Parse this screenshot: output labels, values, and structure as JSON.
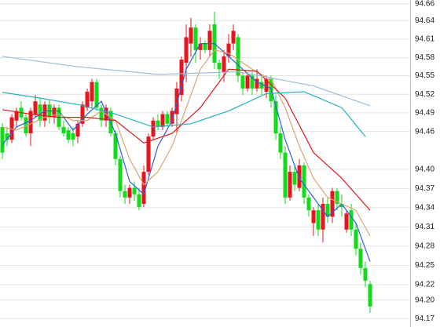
{
  "chart_data": {
    "type": "candlestick",
    "open": [
      94.47,
      94.46,
      94.45,
      94.48,
      94.5,
      94.485,
      94.46,
      94.49,
      94.505,
      94.48,
      94.505,
      94.485,
      94.5,
      94.47,
      94.465,
      94.46,
      94.455,
      94.475,
      94.5,
      94.51,
      94.54,
      94.5,
      94.48,
      94.495,
      94.46,
      94.42,
      94.37,
      94.36,
      94.375,
      94.365,
      94.35,
      94.4,
      94.455,
      94.48,
      94.47,
      94.49,
      94.475,
      94.49,
      94.52,
      94.57,
      94.6,
      94.625,
      94.59,
      94.6,
      94.59,
      94.63,
      94.57,
      94.555,
      94.58,
      94.6,
      94.61,
      94.55,
      94.53,
      94.55,
      94.53,
      94.54,
      94.525,
      94.545,
      94.51,
      94.46,
      94.43,
      94.36,
      94.4,
      94.375,
      94.41,
      94.36,
      94.32,
      94.34,
      94.31,
      94.35,
      94.33,
      94.37,
      94.35,
      94.31,
      94.34,
      94.31,
      94.28,
      94.25,
      94.225
    ],
    "high": [
      94.476,
      94.47,
      94.49,
      94.5,
      94.51,
      94.49,
      94.5,
      94.52,
      94.515,
      94.51,
      94.512,
      94.505,
      94.505,
      94.48,
      94.47,
      94.47,
      94.48,
      94.51,
      94.53,
      94.545,
      94.545,
      94.505,
      94.505,
      94.5,
      94.465,
      94.425,
      94.38,
      94.38,
      94.385,
      94.375,
      94.41,
      94.46,
      94.485,
      94.49,
      94.495,
      94.495,
      94.5,
      94.54,
      94.58,
      94.63,
      94.64,
      94.63,
      94.61,
      94.605,
      94.63,
      94.65,
      94.575,
      94.59,
      94.615,
      94.63,
      94.615,
      94.555,
      94.555,
      94.555,
      94.56,
      94.55,
      94.55,
      94.55,
      94.52,
      94.47,
      94.44,
      94.41,
      94.41,
      94.42,
      94.415,
      94.365,
      94.345,
      94.35,
      94.36,
      94.36,
      94.375,
      94.375,
      94.365,
      94.34,
      94.35,
      94.32,
      94.29,
      94.26,
      94.23
    ],
    "low": [
      94.42,
      94.44,
      94.445,
      94.47,
      94.48,
      94.455,
      94.44,
      94.485,
      94.47,
      94.47,
      94.475,
      94.475,
      94.465,
      94.455,
      94.445,
      94.44,
      94.445,
      94.47,
      94.495,
      94.5,
      94.495,
      94.47,
      94.47,
      94.455,
      94.41,
      94.36,
      94.35,
      94.35,
      94.355,
      94.34,
      94.345,
      94.395,
      94.45,
      94.465,
      94.465,
      94.47,
      94.47,
      94.46,
      94.51,
      94.54,
      94.58,
      94.57,
      94.575,
      94.585,
      94.58,
      94.56,
      94.545,
      94.54,
      94.57,
      94.59,
      94.54,
      94.52,
      94.525,
      94.52,
      94.525,
      94.52,
      94.515,
      94.5,
      94.45,
      94.42,
      94.35,
      94.355,
      94.37,
      94.37,
      94.35,
      94.33,
      94.3,
      94.3,
      94.29,
      94.32,
      94.32,
      94.34,
      94.33,
      94.305,
      94.3,
      94.27,
      94.24,
      94.22,
      94.18
    ],
    "close": [
      94.43,
      94.45,
      94.485,
      94.495,
      94.485,
      94.46,
      94.495,
      94.51,
      94.48,
      94.505,
      94.485,
      94.5,
      94.47,
      94.46,
      94.45,
      94.45,
      94.475,
      94.505,
      94.525,
      94.54,
      94.5,
      94.48,
      94.5,
      94.46,
      94.42,
      94.37,
      94.36,
      94.375,
      94.365,
      94.345,
      94.4,
      94.455,
      94.48,
      94.47,
      94.49,
      94.475,
      94.495,
      94.53,
      94.575,
      94.61,
      94.625,
      94.59,
      94.6,
      94.59,
      94.62,
      94.57,
      94.56,
      94.58,
      94.6,
      94.62,
      94.55,
      94.53,
      94.55,
      94.53,
      94.545,
      94.53,
      94.545,
      94.51,
      94.46,
      94.43,
      94.36,
      94.4,
      94.38,
      94.41,
      94.36,
      94.34,
      94.34,
      94.31,
      94.35,
      94.33,
      94.37,
      94.35,
      94.345,
      94.335,
      94.31,
      94.28,
      94.25,
      94.23,
      94.19
    ],
    "up_color": "#e8141e",
    "down_color": "#10dc1a",
    "series": [
      {
        "color": "#2f5fe0",
        "x": [
          0,
          3,
          6,
          9,
          12,
          15,
          18,
          21,
          24,
          27,
          30,
          33,
          36,
          39,
          42,
          45,
          48,
          51,
          54,
          57,
          60,
          63,
          66,
          69,
          72,
          75,
          78
        ],
        "values": [
          94.442,
          94.47,
          94.48,
          94.495,
          94.495,
          94.465,
          94.49,
          94.51,
          94.46,
          94.385,
          94.365,
          94.44,
          94.48,
          94.56,
          94.6,
          94.6,
          94.58,
          94.56,
          94.54,
          94.53,
          94.45,
          94.39,
          94.36,
          94.33,
          94.35,
          94.32,
          94.26
        ]
      },
      {
        "color": "#d8a575",
        "x": [
          0,
          3,
          6,
          9,
          12,
          15,
          18,
          21,
          24,
          27,
          30,
          33,
          36,
          39,
          42,
          45,
          48,
          51,
          54,
          57,
          60,
          63,
          66,
          69,
          72,
          75,
          78
        ],
        "values": [
          94.47,
          94.465,
          94.475,
          94.485,
          94.49,
          94.48,
          94.48,
          94.495,
          94.48,
          94.42,
          94.38,
          94.4,
          94.44,
          94.5,
          94.56,
          94.59,
          94.585,
          94.57,
          94.555,
          94.545,
          94.5,
          94.44,
          94.39,
          94.36,
          94.35,
          94.34,
          94.3
        ]
      },
      {
        "color": "#e01818",
        "x": [
          0,
          6,
          12,
          18,
          24,
          30,
          36,
          42,
          48,
          54,
          60,
          66,
          72,
          78
        ],
        "values": [
          94.497,
          94.49,
          94.485,
          94.485,
          94.48,
          94.445,
          94.46,
          94.5,
          94.56,
          94.557,
          94.515,
          94.43,
          94.39,
          94.34
        ]
      },
      {
        "color": "#22b2c2",
        "x": [
          0,
          8,
          16,
          24,
          32,
          40,
          48,
          56,
          64,
          72,
          77
        ],
        "values": [
          94.524,
          94.515,
          94.505,
          94.49,
          94.47,
          94.475,
          94.495,
          94.522,
          94.525,
          94.5,
          94.455
        ]
      },
      {
        "color": "#98bde2",
        "x": [
          0,
          16,
          33,
          50,
          66,
          78
        ],
        "values": [
          94.58,
          94.564,
          94.552,
          94.556,
          94.534,
          94.503
        ]
      }
    ],
    "ylim": [
      94.158,
      94.668
    ],
    "yticks": [
      {
        "value": 94.662,
        "label": "94.66"
      },
      {
        "value": 94.636,
        "label": "94.64"
      },
      {
        "value": 94.607,
        "label": "94.61"
      },
      {
        "value": 94.578,
        "label": "94.58"
      },
      {
        "value": 94.55,
        "label": "94.55"
      },
      {
        "value": 94.521,
        "label": "94.52"
      },
      {
        "value": 94.492,
        "label": "94.49"
      },
      {
        "value": 94.463,
        "label": "94.46"
      },
      {
        "value": 94.404,
        "label": "94.40"
      },
      {
        "value": 94.374,
        "label": "94.37"
      },
      {
        "value": 94.344,
        "label": "94.34"
      },
      {
        "value": 94.314,
        "label": "94.31"
      },
      {
        "value": 94.284,
        "label": "94.28"
      },
      {
        "value": 94.254,
        "label": "94.25"
      },
      {
        "value": 94.224,
        "label": "94.22"
      },
      {
        "value": 94.2,
        "label": "94.20"
      },
      {
        "value": 94.171,
        "label": "94.17"
      }
    ],
    "grid": true
  }
}
